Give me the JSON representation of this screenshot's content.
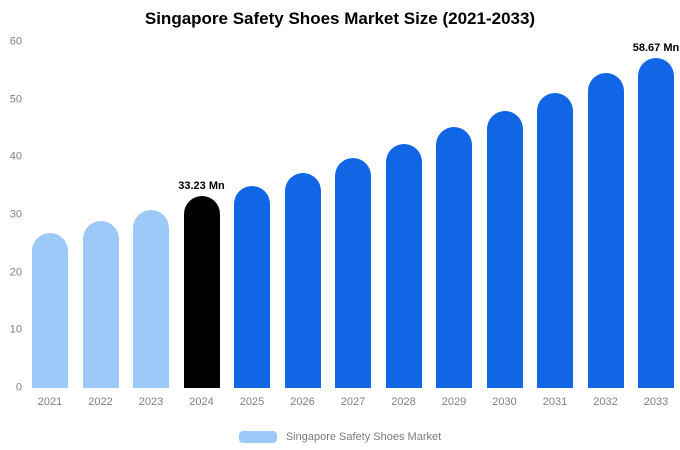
{
  "title": "Singapore Safety Shoes Market Size (2021-2033)",
  "legend": {
    "label": "Singapore Safety Shoes Market"
  },
  "colors": {
    "light_blue": "#9DC9F8",
    "blue": "#1166E6",
    "black": "#000000",
    "axis_text": "#7f7f7f"
  },
  "chart_data": {
    "type": "bar",
    "title": "Singapore Safety Shoes Market Size (2021-2033)",
    "xlabel": "",
    "ylabel": "",
    "ylim": [
      0,
      60
    ],
    "yticks": [
      0,
      10,
      20,
      30,
      40,
      50,
      60
    ],
    "grid": false,
    "legend_position": "bottom",
    "categories": [
      "2021",
      "2022",
      "2023",
      "2024",
      "2025",
      "2026",
      "2027",
      "2028",
      "2029",
      "2030",
      "2031",
      "2032",
      "2033"
    ],
    "values": [
      26.9,
      28.9,
      30.8,
      33.23,
      35.1,
      37.2,
      39.9,
      42.3,
      45.2,
      48.0,
      51.2,
      54.6,
      58.67
    ],
    "points": [
      {
        "year": "2021",
        "value": 26.9,
        "color": "light_blue"
      },
      {
        "year": "2022",
        "value": 28.9,
        "color": "light_blue"
      },
      {
        "year": "2023",
        "value": 30.8,
        "color": "light_blue"
      },
      {
        "year": "2024",
        "value": 33.23,
        "color": "black",
        "label": "33.23 Mn"
      },
      {
        "year": "2025",
        "value": 35.1,
        "color": "blue"
      },
      {
        "year": "2026",
        "value": 37.2,
        "color": "blue"
      },
      {
        "year": "2027",
        "value": 39.9,
        "color": "blue"
      },
      {
        "year": "2028",
        "value": 42.3,
        "color": "blue"
      },
      {
        "year": "2029",
        "value": 45.2,
        "color": "blue"
      },
      {
        "year": "2030",
        "value": 48.0,
        "color": "blue"
      },
      {
        "year": "2031",
        "value": 51.2,
        "color": "blue"
      },
      {
        "year": "2032",
        "value": 54.6,
        "color": "blue"
      },
      {
        "year": "2033",
        "value": 58.67,
        "color": "blue",
        "label": "58.67 Mn"
      }
    ]
  }
}
